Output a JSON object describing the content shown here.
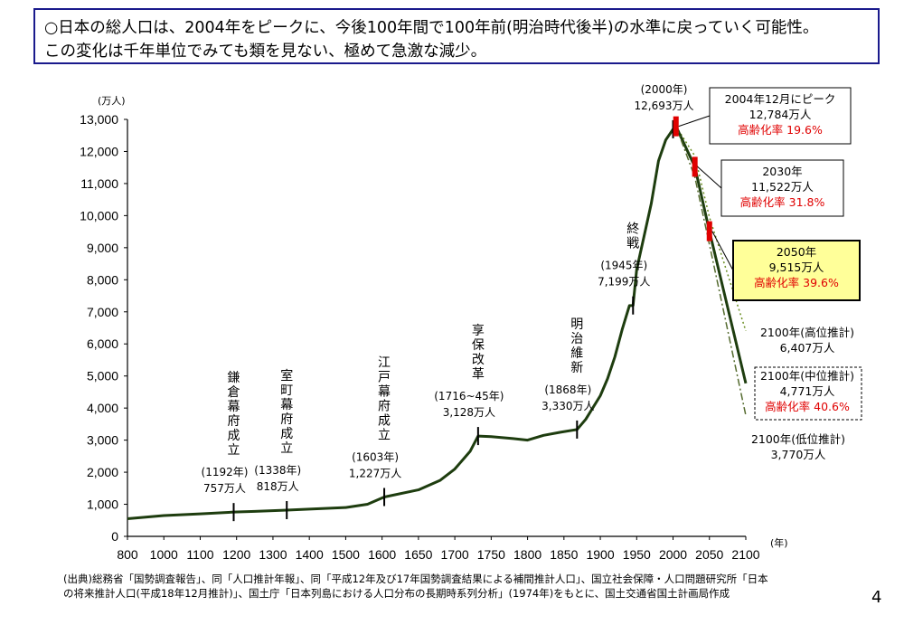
{
  "headline": {
    "line1": "○日本の総人口は、2004年をピークに、今後100年間で100年前(明治時代後半)の水準に戻っていく可能性。",
    "line2": "この変化は千年単位でみても類を見ない、極めて急激な減少。"
  },
  "chart_data": {
    "type": "line",
    "y_unit_label": "(万人)",
    "x_unit_label": "(年)",
    "xlim": [
      800,
      2100
    ],
    "ylim": [
      0,
      13000
    ],
    "x_ticks": [
      800,
      1000,
      1200,
      1400,
      1600,
      1800,
      2000,
      2050,
      2100
    ],
    "x_tick_labels": [
      "800",
      "1000",
      "1100",
      "1200",
      "1300",
      "1400",
      "1500",
      "1600",
      "1650",
      "1700",
      "1750",
      "1800",
      "1850",
      "1900",
      "1950",
      "2000",
      "2050",
      "2100"
    ],
    "x_tick_values": [
      800,
      1000,
      1100,
      1200,
      1300,
      1400,
      1500,
      1600,
      1650,
      1700,
      1750,
      1800,
      1850,
      1900,
      1950,
      2000,
      2050,
      2100
    ],
    "x_tick_slots": [
      800,
      900,
      1000,
      1100,
      1200,
      1300,
      1400,
      1500,
      1600,
      1700,
      1800,
      1900,
      2000,
      2100,
      2200,
      2300,
      2400,
      2500
    ],
    "y_tick_labels": [
      "0",
      "1,000",
      "2,000",
      "3,000",
      "4,000",
      "5,000",
      "6,000",
      "7,000",
      "8,000",
      "9,000",
      "10,000",
      "11,000",
      "12,000",
      "13,000"
    ],
    "y_tick_values": [
      0,
      1000,
      2000,
      3000,
      4000,
      5000,
      6000,
      7000,
      8000,
      9000,
      10000,
      11000,
      12000,
      13000
    ],
    "historical": {
      "x": [
        800,
        900,
        1000,
        1100,
        1192,
        1250,
        1338,
        1400,
        1500,
        1560,
        1603,
        1650,
        1680,
        1700,
        1721,
        1732,
        1750,
        1780,
        1800,
        1822,
        1846,
        1868,
        1880,
        1900,
        1910,
        1920,
        1930,
        1940,
        1945,
        1950,
        1960,
        1970,
        1980,
        1990,
        2000,
        2004
      ],
      "y": [
        551,
        600,
        650,
        700,
        757,
        780,
        818,
        850,
        900,
        1000,
        1227,
        1450,
        1750,
        2100,
        2650,
        3128,
        3110,
        3050,
        3000,
        3150,
        3250,
        3330,
        3650,
        4385,
        4918,
        5596,
        6445,
        7193,
        7199,
        8320,
        9342,
        10372,
        11706,
        12361,
        12693,
        12784
      ]
    },
    "projections": [
      {
        "name": "2100年(高位推計)",
        "x": [
          2004,
          2030,
          2050,
          2100
        ],
        "y": [
          12784,
          11860,
          9950,
          6407
        ]
      },
      {
        "name": "2100年(中位推計)",
        "x": [
          2004,
          2030,
          2050,
          2100
        ],
        "y": [
          12784,
          11522,
          9515,
          4771
        ]
      },
      {
        "name": "2100年(低位推計)",
        "x": [
          2004,
          2030,
          2050,
          2100
        ],
        "y": [
          12784,
          11200,
          9100,
          3770
        ]
      }
    ],
    "events": [
      {
        "label": "鎌倉幕府成立",
        "year_text": "(1192年)",
        "value_text": "757万人",
        "x": 1192,
        "y": 757
      },
      {
        "label": "室町幕府成立",
        "year_text": "(1338年)",
        "value_text": "818万人",
        "x": 1338,
        "y": 818
      },
      {
        "label": "江戸幕府成立",
        "year_text": "(1603年)",
        "value_text": "1,227万人",
        "x": 1603,
        "y": 1227
      },
      {
        "label": "享保改革",
        "year_text": "(1716~45年)",
        "value_text": "3,128万人",
        "x": 1732,
        "y": 3128
      },
      {
        "label": "明治維新",
        "year_text": "(1868年)",
        "value_text": "3,330万人",
        "x": 1868,
        "y": 3330
      },
      {
        "label": "終戦",
        "year_text": "(1945年)",
        "value_text": "7,199万人",
        "x": 1945,
        "y": 7199
      },
      {
        "label": "",
        "year_text": "(2000年)",
        "value_text": "12,693万人",
        "x": 2000,
        "y": 12693
      }
    ],
    "callouts": [
      {
        "lines": [
          "2004年12月にピーク",
          "12,784万人"
        ],
        "rate": "高齢化率 19.6%",
        "x": 2004,
        "y": 12784
      },
      {
        "lines": [
          "2030年",
          "11,522万人"
        ],
        "rate": "高齢化率 31.8%",
        "x": 2030,
        "y": 11522
      },
      {
        "lines": [
          "2050年",
          "9,515万人"
        ],
        "rate": "高齢化率 39.6%",
        "x": 2050,
        "y": 9515
      }
    ],
    "end_labels": [
      {
        "name": "2100年(高位推計)",
        "value": "6,407万人"
      },
      {
        "name": "2100年(中位推計)",
        "value": "4,771万人",
        "rate": "高齢化率 40.6%"
      },
      {
        "name": "2100年(低位推計)",
        "value": "3,770万人"
      }
    ],
    "colors": {
      "line": "#1e3d0f",
      "high": "#6b8e23",
      "low": "#556b2f",
      "rate": "#e00000",
      "highlight_box": "#ffff99",
      "marker": "#e00000"
    }
  },
  "source": {
    "line1": "(出典)総務省「国勢調査報告」、同「人口推計年報」、同「平成12年及び17年国勢調査結果による補間推計人口」、国立社会保障・人口問題研究所「日本",
    "line2": "の将来推計人口(平成18年12月推計)」、国土庁「日本列島における人口分布の長期時系列分析」(1974年)をもとに、国土交通省国土計画局作成"
  },
  "page_number": "4"
}
